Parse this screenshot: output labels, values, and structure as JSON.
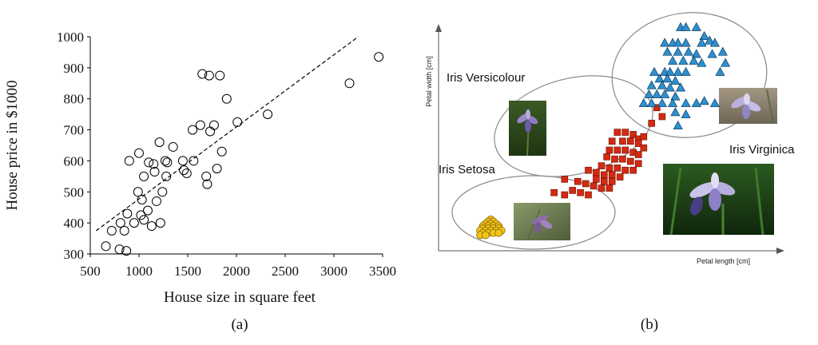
{
  "chart_data": [
    {
      "type": "scatter",
      "panel_label": "(a)",
      "title": "",
      "xlabel": "House size in square feet",
      "ylabel": "House price in $1000",
      "xlim": [
        500,
        3500
      ],
      "ylim": [
        300,
        1000
      ],
      "xticks": [
        "500",
        "1000",
        "1500",
        "2000",
        "2500",
        "3000",
        "3500"
      ],
      "yticks": [
        "300",
        "400",
        "500",
        "600",
        "700",
        "800",
        "900",
        "1000"
      ],
      "grid": false,
      "series": [
        {
          "marker": "open-circle",
          "points": [
            [
              660,
              325
            ],
            [
              720,
              375
            ],
            [
              800,
              315
            ],
            [
              810,
              400
            ],
            [
              850,
              375
            ],
            [
              870,
              310
            ],
            [
              880,
              430
            ],
            [
              900,
              600
            ],
            [
              950,
              400
            ],
            [
              990,
              500
            ],
            [
              1000,
              625
            ],
            [
              1020,
              425
            ],
            [
              1030,
              475
            ],
            [
              1050,
              550
            ],
            [
              1050,
              410
            ],
            [
              1090,
              440
            ],
            [
              1100,
              595
            ],
            [
              1130,
              390
            ],
            [
              1150,
              590
            ],
            [
              1160,
              565
            ],
            [
              1180,
              470
            ],
            [
              1210,
              660
            ],
            [
              1220,
              400
            ],
            [
              1240,
              500
            ],
            [
              1270,
              600
            ],
            [
              1280,
              550
            ],
            [
              1290,
              595
            ],
            [
              1350,
              645
            ],
            [
              1450,
              600
            ],
            [
              1460,
              570
            ],
            [
              1490,
              560
            ],
            [
              1550,
              700
            ],
            [
              1560,
              600
            ],
            [
              1630,
              715
            ],
            [
              1650,
              880
            ],
            [
              1690,
              550
            ],
            [
              1700,
              525
            ],
            [
              1720,
              875
            ],
            [
              1730,
              695
            ],
            [
              1770,
              715
            ],
            [
              1800,
              575
            ],
            [
              1830,
              875
            ],
            [
              1850,
              630
            ],
            [
              1900,
              800
            ],
            [
              2010,
              725
            ],
            [
              2320,
              750
            ],
            [
              3160,
              850
            ],
            [
              3460,
              935
            ]
          ]
        }
      ],
      "trendline": {
        "style": "dashed",
        "from": [
          560,
          375
        ],
        "to": [
          3250,
          1000
        ]
      }
    },
    {
      "type": "scatter",
      "panel_label": "(b)",
      "title": "",
      "xlabel": "Petal length [cm]",
      "ylabel": "Petal width [cm]",
      "axis_ticks": false,
      "grid": false,
      "series": [
        {
          "name": "Iris Setosa",
          "marker": "circle",
          "color": "#f2c418",
          "points": [
            [
              18,
              14
            ],
            [
              17,
              13
            ],
            [
              19,
              13
            ],
            [
              16,
              12
            ],
            [
              18,
              12
            ],
            [
              20,
              12
            ],
            [
              15,
              11
            ],
            [
              17,
              11
            ],
            [
              19,
              11
            ],
            [
              21,
              11
            ],
            [
              15,
              10
            ],
            [
              17,
              10
            ],
            [
              19,
              10
            ],
            [
              21,
              10
            ],
            [
              14,
              9
            ],
            [
              16,
              9
            ],
            [
              18,
              9
            ],
            [
              20,
              9
            ],
            [
              22,
              9
            ],
            [
              15,
              8
            ],
            [
              17,
              8
            ],
            [
              19,
              8
            ],
            [
              21,
              8
            ],
            [
              14,
              7
            ],
            [
              16,
              7
            ]
          ]
        },
        {
          "name": "Iris Versicolour",
          "marker": "square",
          "color": "#d42a12",
          "points": [
            [
              66,
              53
            ],
            [
              69,
              53
            ],
            [
              72,
              52
            ],
            [
              74,
              50
            ],
            [
              76,
              51
            ],
            [
              64,
              49
            ],
            [
              68,
              49
            ],
            [
              71,
              49
            ],
            [
              74,
              48
            ],
            [
              76,
              46
            ],
            [
              63,
              45
            ],
            [
              66,
              45
            ],
            [
              69,
              45
            ],
            [
              72,
              44
            ],
            [
              74,
              43
            ],
            [
              62,
              42
            ],
            [
              65,
              41
            ],
            [
              68,
              41
            ],
            [
              71,
              40
            ],
            [
              74,
              39
            ],
            [
              60,
              38
            ],
            [
              63,
              37
            ],
            [
              66,
              37
            ],
            [
              69,
              36
            ],
            [
              72,
              36
            ],
            [
              55,
              36
            ],
            [
              58,
              35
            ],
            [
              61,
              34
            ],
            [
              64,
              34
            ],
            [
              67,
              33
            ],
            [
              58,
              32
            ],
            [
              61,
              31
            ],
            [
              64,
              31
            ],
            [
              46,
              32
            ],
            [
              51,
              31
            ],
            [
              54,
              30
            ],
            [
              57,
              29
            ],
            [
              60,
              28
            ],
            [
              63,
              28
            ],
            [
              49,
              27
            ],
            [
              52,
              26
            ],
            [
              55,
              25
            ],
            [
              42,
              26
            ],
            [
              46,
              25
            ],
            [
              79,
              57
            ],
            [
              83,
              60
            ],
            [
              81,
              64
            ]
          ]
        },
        {
          "name": "Iris Virginica",
          "marker": "triangle",
          "color": "#2f8fcc",
          "points": [
            [
              90,
              100
            ],
            [
              92,
              100
            ],
            [
              96,
              100
            ],
            [
              99,
              96
            ],
            [
              101,
              94
            ],
            [
              84,
              93
            ],
            [
              87,
              93
            ],
            [
              89,
              93
            ],
            [
              92,
              93
            ],
            [
              98,
              93
            ],
            [
              103,
              93
            ],
            [
              85,
              89
            ],
            [
              89,
              89
            ],
            [
              93,
              89
            ],
            [
              96,
              88
            ],
            [
              102,
              88
            ],
            [
              106,
              89
            ],
            [
              87,
              85
            ],
            [
              91,
              85
            ],
            [
              95,
              85
            ],
            [
              98,
              84
            ],
            [
              107,
              84
            ],
            [
              80,
              80
            ],
            [
              84,
              80
            ],
            [
              86,
              80
            ],
            [
              89,
              80
            ],
            [
              92,
              80
            ],
            [
              105,
              80
            ],
            [
              82,
              77
            ],
            [
              85,
              77
            ],
            [
              88,
              76
            ],
            [
              79,
              74
            ],
            [
              83,
              74
            ],
            [
              86,
              73
            ],
            [
              90,
              73
            ],
            [
              78,
              70
            ],
            [
              81,
              70
            ],
            [
              84,
              70
            ],
            [
              88,
              69
            ],
            [
              76,
              66
            ],
            [
              79,
              66
            ],
            [
              83,
              66
            ],
            [
              87,
              66
            ],
            [
              92,
              66
            ],
            [
              96,
              66
            ],
            [
              99,
              67
            ],
            [
              103,
              66
            ],
            [
              88,
              62
            ],
            [
              92,
              61
            ],
            [
              89,
              56
            ]
          ]
        }
      ],
      "annotations": [
        "Iris Versicolour",
        "Iris Setosa",
        "Iris Virginica"
      ]
    }
  ]
}
